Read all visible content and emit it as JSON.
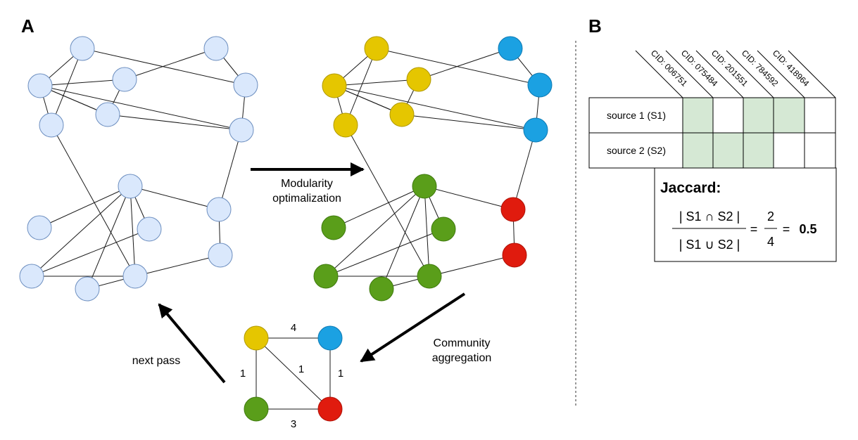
{
  "panel_a": {
    "letter": "A"
  },
  "panel_b": {
    "letter": "B"
  },
  "arrows": {
    "step1": [
      "Modularity",
      "optimalization"
    ],
    "step2": [
      "Community",
      "aggregation"
    ],
    "step3": "next pass"
  },
  "aggregated_weights": {
    "top": "4",
    "bottom": "3",
    "left": "1",
    "right": "1",
    "diagonal": "1"
  },
  "colors": {
    "yellow": "#e5c600",
    "blue": "#1ba1e2",
    "green": "#5a9e1a",
    "red": "#e01b0e",
    "light_node": "#dae8fc",
    "light_node_border": "#6c8ebf",
    "cell_fill": "#d5e8d4"
  },
  "table": {
    "columns": [
      "CID: 006751",
      "CID: 075484",
      "CID: 201551",
      "CID: 784592",
      "CID: 418964"
    ],
    "rows": [
      {
        "label": "source 1 (S1)",
        "cells": [
          true,
          false,
          true,
          true,
          false
        ]
      },
      {
        "label": "source 2 (S2)",
        "cells": [
          true,
          true,
          true,
          false,
          false
        ]
      }
    ]
  },
  "jaccard": {
    "title": "Jaccard:",
    "numerator": "| S1 ∩ S2 |",
    "denominator": "| S1 ∪ S2 |",
    "eq1": "=",
    "frac_num": "2",
    "frac_den": "4",
    "eq2": "=",
    "result": "0.5"
  }
}
